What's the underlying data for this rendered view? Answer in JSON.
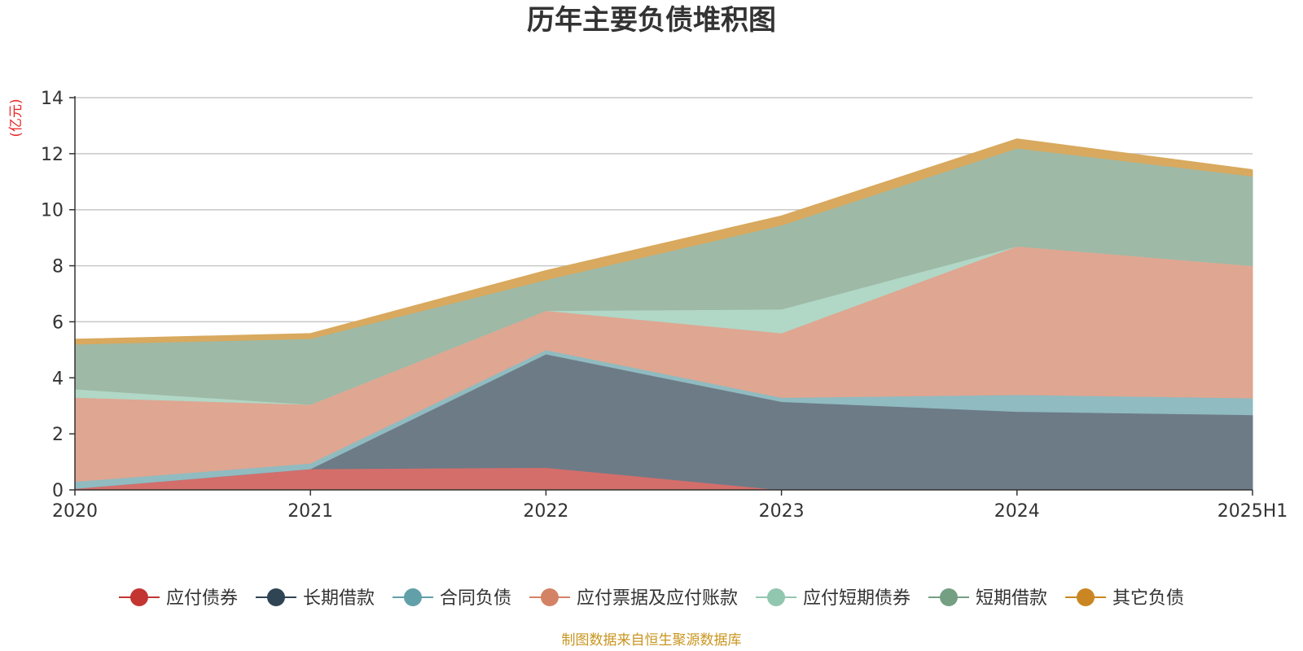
{
  "chart_data": {
    "type": "area",
    "stacked": true,
    "title": "历年主要负债堆积图",
    "unit": "(亿元)",
    "source": "制图数据来自恒生聚源数据库",
    "categories": [
      "2020",
      "2021",
      "2022",
      "2023",
      "2024",
      "2025H1"
    ],
    "ylim": [
      0,
      14
    ],
    "yticks": [
      0,
      2,
      4,
      6,
      8,
      10,
      12,
      14
    ],
    "grid": true,
    "legend_position": "bottom",
    "source_color": "#c9951f",
    "series": [
      {
        "name": "应付债券",
        "color": "#c23531",
        "area_color": "#d46e6b",
        "values": [
          0.05,
          0.75,
          0.8,
          0.0,
          0.0,
          0.0
        ]
      },
      {
        "name": "长期借款",
        "color": "#2f4554",
        "area_color": "#6d7b87",
        "values": [
          0.0,
          0.0,
          4.05,
          3.15,
          2.8,
          2.68
        ]
      },
      {
        "name": "合同负债",
        "color": "#61a0a8",
        "area_color": "#90bbc0",
        "values": [
          0.25,
          0.2,
          0.15,
          0.15,
          0.6,
          0.6
        ]
      },
      {
        "name": "应付票据及应付账款",
        "color": "#d48265",
        "area_color": "#dfa691",
        "values": [
          3.0,
          2.1,
          1.4,
          2.3,
          5.3,
          4.72
        ]
      },
      {
        "name": "应付短期债券",
        "color": "#91c7ae",
        "area_color": "#b1d7c6",
        "values": [
          0.3,
          0.0,
          0.0,
          0.85,
          0.0,
          0.0
        ]
      },
      {
        "name": "短期借款",
        "color": "#749f83",
        "area_color": "#9eb9a6",
        "values": [
          1.6,
          2.35,
          1.1,
          3.0,
          3.5,
          3.2
        ]
      },
      {
        "name": "其它负债",
        "color": "#ca8622",
        "area_color": "#d8a95e",
        "values": [
          0.15,
          0.15,
          0.3,
          0.3,
          0.3,
          0.2
        ]
      }
    ]
  }
}
